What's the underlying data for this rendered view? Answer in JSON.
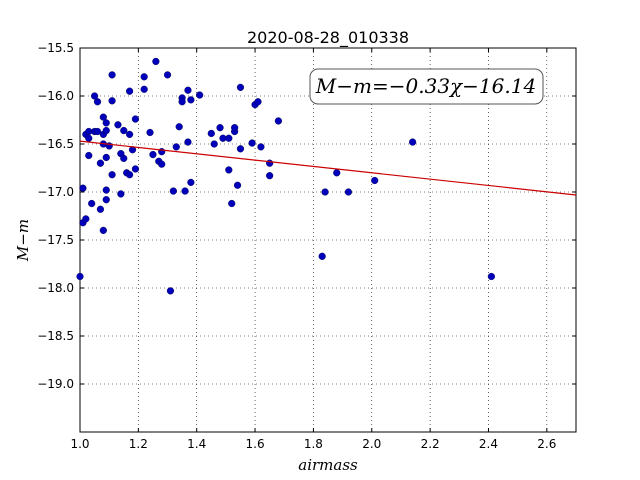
{
  "chart_data": {
    "type": "scatter",
    "title": "2020-08-28_010338",
    "xlabel": "airmass",
    "ylabel": "M−m",
    "xlim": [
      1.0,
      2.7
    ],
    "ylim": [
      -15.5,
      -19.5
    ],
    "y_inverted": true,
    "grid": true,
    "xticks": [
      "1.0",
      "1.2",
      "1.4",
      "1.6",
      "1.8",
      "2.0",
      "2.2",
      "2.4",
      "2.6"
    ],
    "xtick_values": [
      1.0,
      1.2,
      1.4,
      1.6,
      1.8,
      2.0,
      2.2,
      2.4,
      2.6
    ],
    "yticks": [
      "−15.5",
      "−16.0",
      "−16.5",
      "−17.0",
      "−17.5",
      "−18.0",
      "−18.5",
      "−19.0"
    ],
    "ytick_values": [
      -15.5,
      -16.0,
      -16.5,
      -17.0,
      -17.5,
      -18.0,
      -18.5,
      -19.0
    ],
    "annotation": "M−m=−0.33χ−16.14",
    "fit": {
      "slope": -0.33,
      "intercept": -16.14,
      "color": "#cc0000"
    },
    "point_color": "#0000bb",
    "points": [
      [
        1.0,
        -17.88
      ],
      [
        1.01,
        -17.32
      ],
      [
        1.01,
        -16.96
      ],
      [
        1.02,
        -16.4
      ],
      [
        1.02,
        -17.28
      ],
      [
        1.03,
        -16.37
      ],
      [
        1.03,
        -16.44
      ],
      [
        1.03,
        -16.62
      ],
      [
        1.04,
        -17.12
      ],
      [
        1.05,
        -16.37
      ],
      [
        1.05,
        -16.0
      ],
      [
        1.06,
        -16.06
      ],
      [
        1.06,
        -16.37
      ],
      [
        1.07,
        -16.7
      ],
      [
        1.07,
        -17.18
      ],
      [
        1.08,
        -16.22
      ],
      [
        1.08,
        -16.5
      ],
      [
        1.08,
        -17.4
      ],
      [
        1.08,
        -16.4
      ],
      [
        1.09,
        -16.28
      ],
      [
        1.09,
        -16.36
      ],
      [
        1.09,
        -16.64
      ],
      [
        1.09,
        -16.98
      ],
      [
        1.09,
        -17.08
      ],
      [
        1.1,
        -16.52
      ],
      [
        1.11,
        -16.05
      ],
      [
        1.11,
        -15.78
      ],
      [
        1.11,
        -16.82
      ],
      [
        1.13,
        -16.3
      ],
      [
        1.14,
        -17.02
      ],
      [
        1.14,
        -16.6
      ],
      [
        1.15,
        -16.36
      ],
      [
        1.15,
        -16.65
      ],
      [
        1.16,
        -16.8
      ],
      [
        1.17,
        -16.82
      ],
      [
        1.17,
        -15.95
      ],
      [
        1.17,
        -16.4
      ],
      [
        1.18,
        -16.56
      ],
      [
        1.19,
        -16.76
      ],
      [
        1.19,
        -16.24
      ],
      [
        1.22,
        -15.8
      ],
      [
        1.22,
        -15.93
      ],
      [
        1.24,
        -16.38
      ],
      [
        1.25,
        -16.61
      ],
      [
        1.26,
        -15.64
      ],
      [
        1.27,
        -16.68
      ],
      [
        1.28,
        -16.58
      ],
      [
        1.28,
        -16.71
      ],
      [
        1.3,
        -15.78
      ],
      [
        1.31,
        -18.03
      ],
      [
        1.32,
        -16.99
      ],
      [
        1.33,
        -16.53
      ],
      [
        1.34,
        -16.32
      ],
      [
        1.35,
        -16.02
      ],
      [
        1.35,
        -16.06
      ],
      [
        1.36,
        -16.99
      ],
      [
        1.37,
        -16.48
      ],
      [
        1.37,
        -15.94
      ],
      [
        1.38,
        -16.9
      ],
      [
        1.38,
        -16.04
      ],
      [
        1.41,
        -15.99
      ],
      [
        1.45,
        -16.39
      ],
      [
        1.46,
        -16.5
      ],
      [
        1.48,
        -16.33
      ],
      [
        1.49,
        -16.44
      ],
      [
        1.51,
        -16.44
      ],
      [
        1.51,
        -16.77
      ],
      [
        1.52,
        -17.12
      ],
      [
        1.53,
        -16.37
      ],
      [
        1.53,
        -16.33
      ],
      [
        1.54,
        -16.93
      ],
      [
        1.55,
        -16.55
      ],
      [
        1.55,
        -15.91
      ],
      [
        1.59,
        -16.49
      ],
      [
        1.6,
        -16.09
      ],
      [
        1.61,
        -16.06
      ],
      [
        1.62,
        -16.53
      ],
      [
        1.65,
        -16.7
      ],
      [
        1.65,
        -16.83
      ],
      [
        1.68,
        -16.26
      ],
      [
        1.83,
        -17.67
      ],
      [
        1.84,
        -17.0
      ],
      [
        1.88,
        -16.8
      ],
      [
        1.92,
        -17.0
      ],
      [
        2.01,
        -16.88
      ],
      [
        2.14,
        -16.48
      ],
      [
        2.41,
        -17.88
      ]
    ]
  }
}
